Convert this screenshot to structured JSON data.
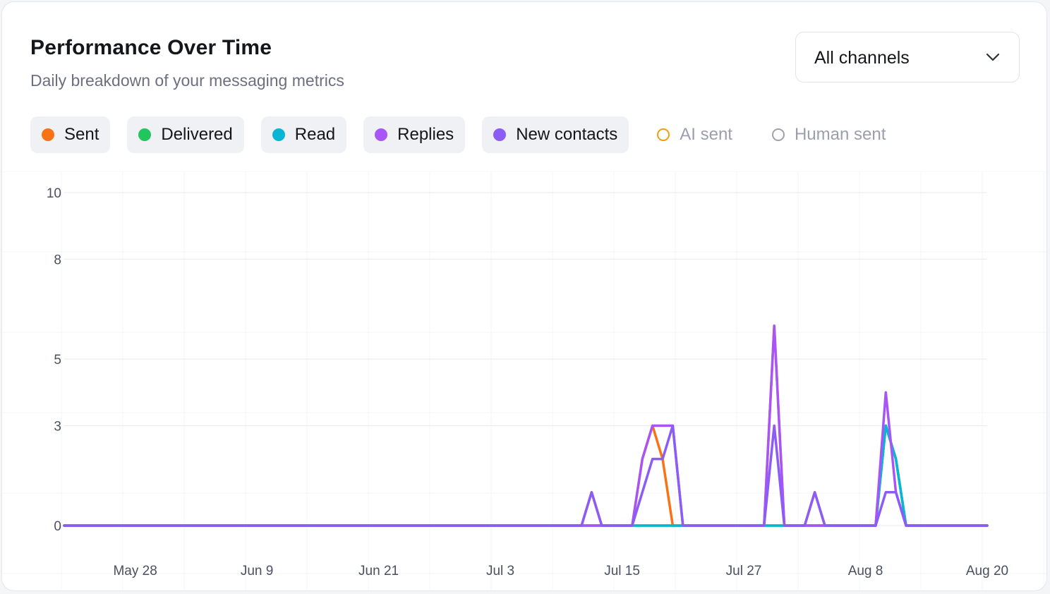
{
  "header": {
    "title": "Performance Over Time",
    "subtitle": "Daily breakdown of your messaging metrics"
  },
  "filter": {
    "selected": "All channels"
  },
  "legend": [
    {
      "label": "Sent",
      "color": "#f97316",
      "active": true
    },
    {
      "label": "Delivered",
      "color": "#22c55e",
      "active": true
    },
    {
      "label": "Read",
      "color": "#06b6d4",
      "active": true
    },
    {
      "label": "Replies",
      "color": "#a855f7",
      "active": true
    },
    {
      "label": "New contacts",
      "color": "#8b5cf6",
      "active": true
    },
    {
      "label": "AI sent",
      "color": "#f59e0b",
      "active": false
    },
    {
      "label": "Human sent",
      "color": "#9ca3af",
      "active": false
    }
  ],
  "chart_data": {
    "type": "line",
    "x_start": "May 21",
    "x_end": "Aug 20",
    "x_ticks": [
      "May 28",
      "Jun 9",
      "Jun 21",
      "Jul 3",
      "Jul 15",
      "Jul 27",
      "Aug 8",
      "Aug 20"
    ],
    "y_ticks": [
      0,
      3,
      5,
      8,
      10
    ],
    "ylim": [
      0,
      10
    ],
    "grid": true,
    "legend_position": "top-left",
    "series": [
      {
        "name": "Sent",
        "color": "#f97316",
        "points": [
          [
            "May 21",
            0
          ],
          [
            "Jul 11",
            0
          ],
          [
            "Jul 12",
            1
          ],
          [
            "Jul 13",
            0
          ],
          [
            "Jul 16",
            0
          ],
          [
            "Jul 17",
            2
          ],
          [
            "Jul 18",
            3
          ],
          [
            "Jul 19",
            2
          ],
          [
            "Jul 20",
            0
          ],
          [
            "Jul 21",
            0
          ],
          [
            "Jul 22",
            0
          ],
          [
            "Jul 29",
            0
          ],
          [
            "Jul 30",
            6
          ],
          [
            "Jul 31",
            0
          ],
          [
            "Aug 2",
            0
          ],
          [
            "Aug 3",
            1
          ],
          [
            "Aug 4",
            0
          ],
          [
            "Aug 9",
            0
          ],
          [
            "Aug 10",
            3
          ],
          [
            "Aug 11",
            2
          ],
          [
            "Aug 12",
            0
          ],
          [
            "Aug 20",
            0
          ]
        ]
      },
      {
        "name": "Delivered",
        "color": "#22c55e",
        "points": [
          [
            "May 21",
            0
          ],
          [
            "Aug 9",
            0
          ],
          [
            "Aug 10",
            3
          ],
          [
            "Aug 11",
            2
          ],
          [
            "Aug 12",
            0
          ],
          [
            "Aug 20",
            0
          ]
        ]
      },
      {
        "name": "Read",
        "color": "#06b6d4",
        "points": [
          [
            "May 21",
            0
          ],
          [
            "Aug 9",
            0
          ],
          [
            "Aug 10",
            3
          ],
          [
            "Aug 11",
            2
          ],
          [
            "Aug 12",
            0
          ],
          [
            "Aug 20",
            0
          ]
        ]
      },
      {
        "name": "Replies",
        "color": "#a855f7",
        "points": [
          [
            "May 21",
            0
          ],
          [
            "Jul 16",
            0
          ],
          [
            "Jul 17",
            2
          ],
          [
            "Jul 18",
            3
          ],
          [
            "Jul 19",
            3
          ],
          [
            "Jul 20",
            3
          ],
          [
            "Jul 21",
            0
          ],
          [
            "Jul 29",
            0
          ],
          [
            "Jul 30",
            6
          ],
          [
            "Jul 31",
            0
          ],
          [
            "Aug 9",
            0
          ],
          [
            "Aug 10",
            4
          ],
          [
            "Aug 11",
            1
          ],
          [
            "Aug 12",
            0
          ],
          [
            "Aug 20",
            0
          ]
        ]
      },
      {
        "name": "New contacts",
        "color": "#8b5cf6",
        "points": [
          [
            "May 21",
            0
          ],
          [
            "Jul 11",
            0
          ],
          [
            "Jul 12",
            1
          ],
          [
            "Jul 13",
            0
          ],
          [
            "Jul 16",
            0
          ],
          [
            "Jul 18",
            2
          ],
          [
            "Jul 19",
            2
          ],
          [
            "Jul 20",
            3
          ],
          [
            "Jul 21",
            0
          ],
          [
            "Jul 29",
            0
          ],
          [
            "Jul 30",
            3
          ],
          [
            "Jul 31",
            0
          ],
          [
            "Aug 2",
            0
          ],
          [
            "Aug 3",
            1
          ],
          [
            "Aug 4",
            0
          ],
          [
            "Aug 9",
            0
          ],
          [
            "Aug 10",
            1
          ],
          [
            "Aug 11",
            1
          ],
          [
            "Aug 12",
            0
          ],
          [
            "Aug 20",
            0
          ]
        ]
      }
    ]
  }
}
